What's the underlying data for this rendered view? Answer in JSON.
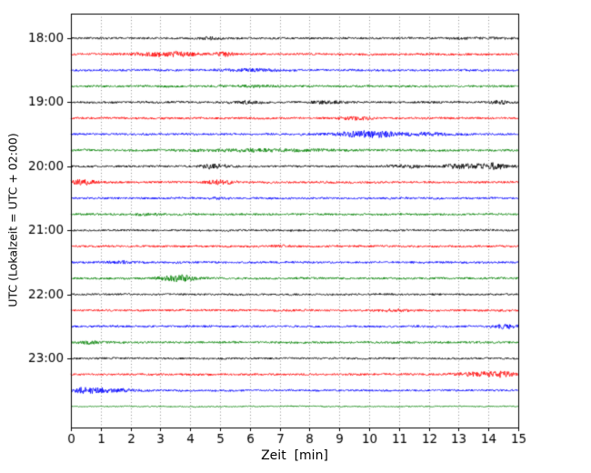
{
  "chart_data": {
    "type": "line",
    "subtype": "seismogram-helicorder",
    "title": "",
    "xlabel": "Zeit  [min]",
    "ylabel": "UTC (Lokalzeit = UTC + 02:00)",
    "xlim": [
      0,
      15
    ],
    "x_ticks": [
      0,
      1,
      2,
      3,
      4,
      5,
      6,
      7,
      8,
      9,
      10,
      11,
      12,
      13,
      14,
      15
    ],
    "x_tick_labels": [
      "0",
      "1",
      "2",
      "3",
      "4",
      "5",
      "6",
      "7",
      "8",
      "9",
      "10",
      "11",
      "12",
      "13",
      "14",
      "15"
    ],
    "y_tick_labels": [
      "18:00",
      "19:00",
      "20:00",
      "21:00",
      "22:00",
      "23:00"
    ],
    "minutes_per_row": 15,
    "grid": "vertical-dotted",
    "legend": "none",
    "trace_color_cycle": [
      "#000000",
      "#ff0000",
      "#0000ff",
      "#008000"
    ],
    "traces": [
      {
        "time": "18:00",
        "color": "#000000",
        "base": 1.1,
        "events": [
          {
            "c": 4.7,
            "w": 0.4,
            "a": 1.0
          },
          {
            "c": 13.8,
            "w": 1.0,
            "a": 0.5
          }
        ]
      },
      {
        "time": "18:15",
        "color": "#ff0000",
        "base": 1.1,
        "events": [
          {
            "c": 3.3,
            "w": 1.0,
            "a": 2.2
          },
          {
            "c": 5.1,
            "w": 0.3,
            "a": 2.0
          }
        ]
      },
      {
        "time": "18:30",
        "color": "#0000ff",
        "base": 1.1,
        "events": [
          {
            "c": 6.0,
            "w": 1.0,
            "a": 1.0
          }
        ]
      },
      {
        "time": "18:45",
        "color": "#008000",
        "base": 1.1,
        "events": [
          {
            "c": 6.3,
            "w": 0.8,
            "a": 0.7
          }
        ]
      },
      {
        "time": "19:00",
        "color": "#000000",
        "base": 1.1,
        "events": [
          {
            "c": 5.8,
            "w": 0.5,
            "a": 1.2
          },
          {
            "c": 8.6,
            "w": 0.7,
            "a": 1.0
          },
          {
            "c": 14.4,
            "w": 0.25,
            "a": 1.6
          }
        ]
      },
      {
        "time": "19:15",
        "color": "#ff0000",
        "base": 1.1,
        "events": [
          {
            "c": 9.6,
            "w": 0.6,
            "a": 1.3
          }
        ]
      },
      {
        "time": "19:30",
        "color": "#0000ff",
        "base": 1.1,
        "events": [
          {
            "c": 10.0,
            "w": 1.1,
            "a": 3.2
          },
          {
            "c": 12.0,
            "w": 0.7,
            "a": 1.2
          }
        ]
      },
      {
        "time": "19:45",
        "color": "#008000",
        "base": 1.2,
        "events": [
          {
            "c": 6.5,
            "w": 2.2,
            "a": 1.0
          }
        ]
      },
      {
        "time": "20:00",
        "color": "#000000",
        "base": 1.1,
        "events": [
          {
            "c": 4.8,
            "w": 0.5,
            "a": 2.0
          },
          {
            "c": 11.2,
            "w": 0.6,
            "a": 1.3
          },
          {
            "c": 13.0,
            "w": 0.6,
            "a": 1.8
          },
          {
            "c": 14.1,
            "w": 0.5,
            "a": 3.2
          }
        ]
      },
      {
        "time": "20:15",
        "color": "#ff0000",
        "base": 1.1,
        "events": [
          {
            "c": 0.4,
            "w": 0.5,
            "a": 2.2
          },
          {
            "c": 5.0,
            "w": 0.5,
            "a": 1.8
          }
        ]
      },
      {
        "time": "20:30",
        "color": "#0000ff",
        "base": 1.1,
        "events": [
          {
            "c": 4.9,
            "w": 0.4,
            "a": 0.7
          }
        ]
      },
      {
        "time": "20:45",
        "color": "#008000",
        "base": 1.1,
        "events": [
          {
            "c": 2.5,
            "w": 0.5,
            "a": 0.5
          }
        ]
      },
      {
        "time": "21:00",
        "color": "#000000",
        "base": 1.0,
        "events": []
      },
      {
        "time": "21:15",
        "color": "#ff0000",
        "base": 1.1,
        "events": [
          {
            "c": 7.0,
            "w": 0.4,
            "a": 0.5
          }
        ]
      },
      {
        "time": "21:30",
        "color": "#0000ff",
        "base": 1.1,
        "events": [
          {
            "c": 1.7,
            "w": 0.5,
            "a": 1.0
          }
        ]
      },
      {
        "time": "21:45",
        "color": "#008000",
        "base": 1.1,
        "events": [
          {
            "c": 3.6,
            "w": 0.6,
            "a": 3.2
          }
        ]
      },
      {
        "time": "22:00",
        "color": "#000000",
        "base": 1.0,
        "events": []
      },
      {
        "time": "22:15",
        "color": "#ff0000",
        "base": 1.1,
        "events": [
          {
            "c": 10.8,
            "w": 0.5,
            "a": 1.2
          }
        ]
      },
      {
        "time": "22:30",
        "color": "#0000ff",
        "base": 1.1,
        "events": [
          {
            "c": 14.6,
            "w": 0.5,
            "a": 1.8
          }
        ]
      },
      {
        "time": "22:45",
        "color": "#008000",
        "base": 1.1,
        "events": [
          {
            "c": 0.7,
            "w": 0.4,
            "a": 1.2
          }
        ]
      },
      {
        "time": "23:00",
        "color": "#000000",
        "base": 1.0,
        "events": []
      },
      {
        "time": "23:15",
        "color": "#ff0000",
        "base": 1.1,
        "events": [
          {
            "c": 13.7,
            "w": 0.7,
            "a": 2.0
          },
          {
            "c": 14.5,
            "w": 0.35,
            "a": 2.2
          }
        ]
      },
      {
        "time": "23:30",
        "color": "#0000ff",
        "base": 1.0,
        "events": [
          {
            "c": 0.6,
            "w": 0.55,
            "a": 3.2
          },
          {
            "c": 1.7,
            "w": 0.8,
            "a": 1.2
          }
        ]
      },
      {
        "time": "23:45",
        "color": "#008000",
        "base": 0.6,
        "events": []
      }
    ]
  }
}
